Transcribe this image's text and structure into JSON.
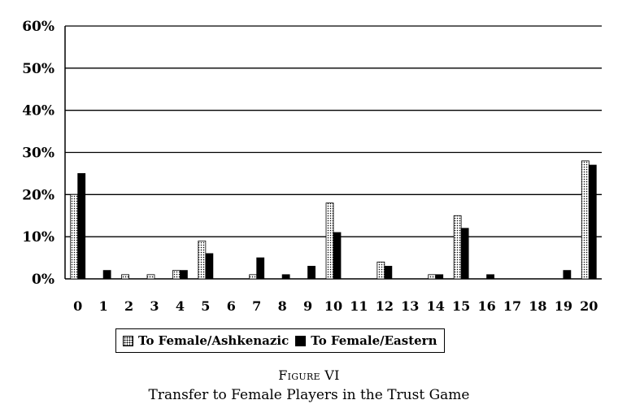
{
  "chart_data": {
    "type": "bar",
    "categories": [
      "0",
      "1",
      "2",
      "3",
      "4",
      "5",
      "6",
      "7",
      "8",
      "9",
      "10",
      "11",
      "12",
      "13",
      "14",
      "15",
      "16",
      "17",
      "18",
      "19",
      "20"
    ],
    "series": [
      {
        "name": "To Female/Ashkenazic",
        "pattern": "dotted",
        "color": "#ffffff",
        "values": [
          20,
          0,
          1,
          1,
          2,
          9,
          0,
          1,
          0,
          0,
          18,
          0,
          4,
          0,
          1,
          15,
          0,
          0,
          0,
          0,
          28
        ]
      },
      {
        "name": "To Female/Eastern",
        "pattern": "solid",
        "color": "#000000",
        "values": [
          25,
          2,
          0,
          0,
          2,
          6,
          0,
          5,
          1,
          3,
          11,
          0,
          3,
          0,
          1,
          12,
          1,
          0,
          0,
          2,
          27
        ]
      }
    ],
    "ylim": [
      0,
      60
    ],
    "yticks": [
      "0%",
      "10%",
      "20%",
      "30%",
      "40%",
      "50%",
      "60%"
    ],
    "grid": true,
    "legend_position": "bottom-left"
  },
  "figure": {
    "number": "Figure VI",
    "caption": "Transfer to Female Players in the Trust Game"
  }
}
